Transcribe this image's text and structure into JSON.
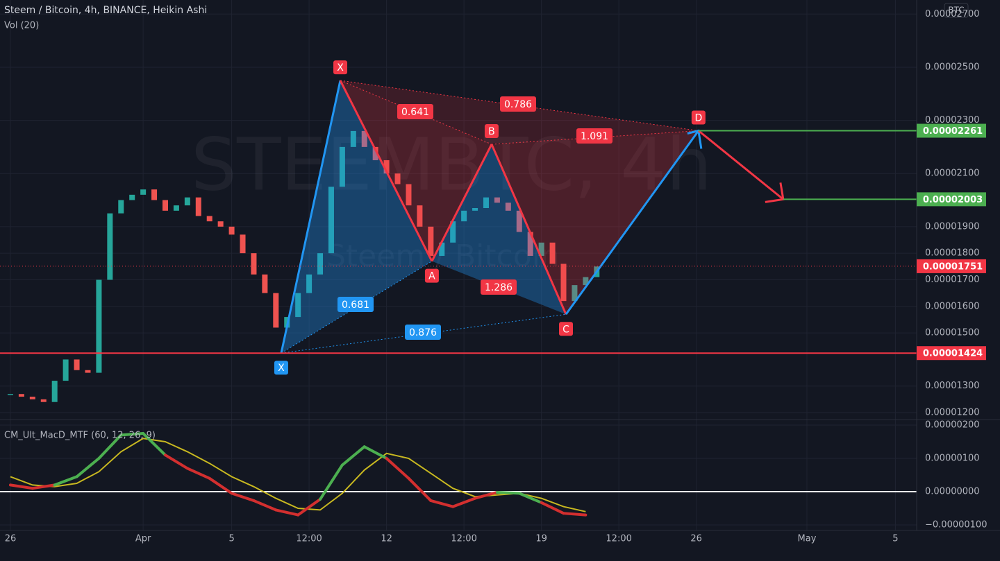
{
  "header": {
    "title": "Steem / Bitcoin, 4h, BINANCE, Heikin Ashi",
    "volume": "Vol (20)",
    "currency": "BTC",
    "watermark": "STEEMBTC, 4h",
    "watermark_sub": "Steem / Bitcoin"
  },
  "chart_data": [
    {
      "type": "candlestick",
      "xlim": [
        -0.47,
        40.96
      ],
      "xticks": [
        {
          "value": 0,
          "label": "26"
        },
        {
          "value": 6,
          "label": "Apr"
        },
        {
          "value": 10,
          "label": "5"
        },
        {
          "value": 13.5,
          "label": "12:00"
        },
        {
          "value": 17,
          "label": "12"
        },
        {
          "value": 20.5,
          "label": "12:00"
        },
        {
          "value": 24,
          "label": "19"
        },
        {
          "value": 27.5,
          "label": "12:00"
        },
        {
          "value": 31,
          "label": "26"
        },
        {
          "value": 36,
          "label": "May"
        },
        {
          "value": 40,
          "label": "5"
        }
      ],
      "ylim": [
        1.174e-05,
        2.753e-05
      ],
      "yticks": [
        {
          "value": 2.7e-05,
          "label": "0.00002700"
        },
        {
          "value": 2.5e-05,
          "label": "0.00002500"
        },
        {
          "value": 2.3e-05,
          "label": "0.00002300"
        },
        {
          "value": 2.1e-05,
          "label": "0.00002100"
        },
        {
          "value": 1.9e-05,
          "label": "0.00001900"
        },
        {
          "value": 1.8e-05,
          "label": "0.00001800"
        },
        {
          "value": 1.7e-05,
          "label": "0.00001700"
        },
        {
          "value": 1.6e-05,
          "label": "0.00001600"
        },
        {
          "value": 1.5e-05,
          "label": "0.00001500"
        },
        {
          "value": 1.3e-05,
          "label": "0.00001300"
        },
        {
          "value": 1.2e-05,
          "label": "0.00001200"
        }
      ],
      "x": [
        0,
        0.5,
        1,
        1.5,
        2,
        2.5,
        3,
        3.5,
        4,
        4.5,
        5,
        5.5,
        6,
        6.5,
        7,
        7.5,
        8,
        8.5,
        9,
        9.5,
        10,
        10.5,
        11,
        11.5,
        12,
        12.5,
        13,
        13.5,
        14,
        14.5,
        15,
        15.5,
        16,
        16.5,
        17,
        17.5,
        18,
        18.5,
        19,
        19.5,
        20,
        20.5,
        21,
        21.5,
        22,
        22.5,
        23,
        23.5,
        24,
        24.5,
        25,
        25.5,
        26,
        26.5
      ],
      "closes": [
        1.27e-05,
        1.26e-05,
        1.25e-05,
        1.24e-05,
        1.32e-05,
        1.4e-05,
        1.36e-05,
        1.35e-05,
        1.7e-05,
        1.95e-05,
        2e-05,
        2.02e-05,
        2.04e-05,
        2e-05,
        1.96e-05,
        1.98e-05,
        2.01e-05,
        1.94e-05,
        1.92e-05,
        1.9e-05,
        1.87e-05,
        1.8e-05,
        1.72e-05,
        1.65e-05,
        1.52e-05,
        1.56e-05,
        1.65e-05,
        1.72e-05,
        1.8e-05,
        2.05e-05,
        2.2e-05,
        2.26e-05,
        2.2e-05,
        2.15e-05,
        2.1e-05,
        2.06e-05,
        1.98e-05,
        1.9e-05,
        1.79e-05,
        1.84e-05,
        1.92e-05,
        1.96e-05,
        1.97e-05,
        2.01e-05,
        1.99e-05,
        1.96e-05,
        1.88e-05,
        1.79e-05,
        1.84e-05,
        1.76e-05,
        1.62e-05,
        1.68e-05,
        1.71e-05,
        1.75e-05
      ],
      "up_color": "#26a69a",
      "down_color": "#ef5350",
      "levels": [
        {
          "value": 2.261e-05,
          "color": "#4caf50",
          "from": 31.1
        },
        {
          "value": 2.003e-05,
          "color": "#4caf50",
          "from": 34.93
        },
        {
          "value": 1.751e-05,
          "color": "#f23645",
          "style": "dotted"
        },
        {
          "value": 1.424e-05,
          "color": "#f23645"
        }
      ],
      "pattern": {
        "points": [
          {
            "label": "X",
            "x": 12.24,
            "y": 1.424e-05,
            "color": "#2196f3"
          },
          {
            "label": "X",
            "x": 14.91,
            "y": 2.45e-05,
            "color": "#f23645"
          },
          {
            "label": "A",
            "x": 19.05,
            "y": 1.77e-05,
            "color": "#f23645"
          },
          {
            "label": "B",
            "x": 21.75,
            "y": 2.21e-05,
            "color": "#f23645"
          },
          {
            "label": "C",
            "x": 25.11,
            "y": 1.57e-05,
            "color": "#f23645"
          },
          {
            "label": "D",
            "x": 31.1,
            "y": 2.261e-05,
            "color": "#f23645"
          }
        ],
        "ratios": [
          0.681,
          0.876,
          0.641,
          0.786,
          1.286,
          1.091
        ],
        "target_x": 34.93
      }
    },
    {
      "type": "line",
      "title": "CM_Ult_MacD_MTF (60, 12, 26, 9)",
      "ylim": [
        -1.167e-06,
        2.167e-06
      ],
      "yticks": [
        {
          "value": 2e-06,
          "label": "0.00000200"
        },
        {
          "value": 1e-06,
          "label": "0.00000100"
        },
        {
          "value": 0,
          "label": "0.00000000"
        },
        {
          "value": -1e-06,
          "label": "−0.00000100"
        }
      ],
      "x": [
        0,
        1,
        2,
        3,
        4,
        5,
        6,
        7,
        8,
        9,
        10,
        11,
        12,
        13,
        14,
        15,
        16,
        17,
        18,
        19,
        20,
        21,
        22,
        23,
        24,
        25,
        26
      ],
      "macd": [
        2e-07,
        1e-07,
        2e-07,
        4.5e-07,
        1e-06,
        1.7e-06,
        1.75e-06,
        1.1e-06,
        7e-07,
        4e-07,
        -5e-08,
        -2.7e-07,
        -5.5e-07,
        -7e-07,
        -2.3e-07,
        8e-07,
        1.35e-06,
        1e-06,
        4e-07,
        -2.7e-07,
        -4.5e-07,
        -2e-07,
        -2e-08,
        -5e-08,
        -3.3e-07,
        -6.5e-07,
        -7e-07
      ],
      "signal": [
        4.5e-07,
        2e-07,
        1.5e-07,
        2.5e-07,
        6e-07,
        1.2e-06,
        1.6e-06,
        1.5e-06,
        1.2e-06,
        8.5e-07,
        4.5e-07,
        1.5e-07,
        -2e-07,
        -5e-07,
        -5.5e-07,
        -5e-08,
        6.5e-07,
        1.15e-06,
        1e-06,
        5.5e-07,
        1e-07,
        -1.5e-07,
        -1e-07,
        -5e-08,
        -2e-07,
        -4.5e-07,
        -6e-07
      ],
      "signal_color": "#c8b820",
      "up_color": "#4caf50",
      "down_color": "#d32f2f"
    }
  ]
}
